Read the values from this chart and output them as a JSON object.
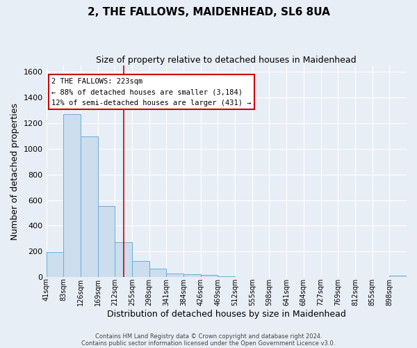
{
  "title": "2, THE FALLOWS, MAIDENHEAD, SL6 8UA",
  "subtitle": "Size of property relative to detached houses in Maidenhead",
  "xlabel": "Distribution of detached houses by size in Maidenhead",
  "ylabel": "Number of detached properties",
  "footer_line1": "Contains HM Land Registry data © Crown copyright and database right 2024.",
  "footer_line2": "Contains public sector information licensed under the Open Government Licence v3.0.",
  "bin_labels": [
    "41sqm",
    "83sqm",
    "126sqm",
    "169sqm",
    "212sqm",
    "255sqm",
    "298sqm",
    "341sqm",
    "384sqm",
    "426sqm",
    "469sqm",
    "512sqm",
    "555sqm",
    "598sqm",
    "641sqm",
    "684sqm",
    "727sqm",
    "769sqm",
    "812sqm",
    "855sqm",
    "898sqm"
  ],
  "bar_values": [
    197,
    1270,
    1095,
    555,
    270,
    125,
    65,
    30,
    20,
    15,
    8,
    0,
    0,
    0,
    0,
    0,
    0,
    0,
    0,
    0,
    12
  ],
  "bar_color": "#ccdded",
  "bar_edge_color": "#6aaed6",
  "vline_x": 4.52,
  "vline_color": "#cc0000",
  "annotation_title": "2 THE FALLOWS: 223sqm",
  "annotation_line1": "← 88% of detached houses are smaller (3,184)",
  "annotation_line2": "12% of semi-detached houses are larger (431) →",
  "ylim": [
    0,
    1650
  ],
  "yticks": [
    0,
    200,
    400,
    600,
    800,
    1000,
    1200,
    1400,
    1600
  ],
  "background_color": "#e8eef6",
  "plot_background": "#e8eef6",
  "grid_color": "#ffffff",
  "title_fontsize": 11,
  "subtitle_fontsize": 9,
  "annotation_box_edge_color": "#cc0000",
  "annotation_box_face_color": "#ffffff"
}
